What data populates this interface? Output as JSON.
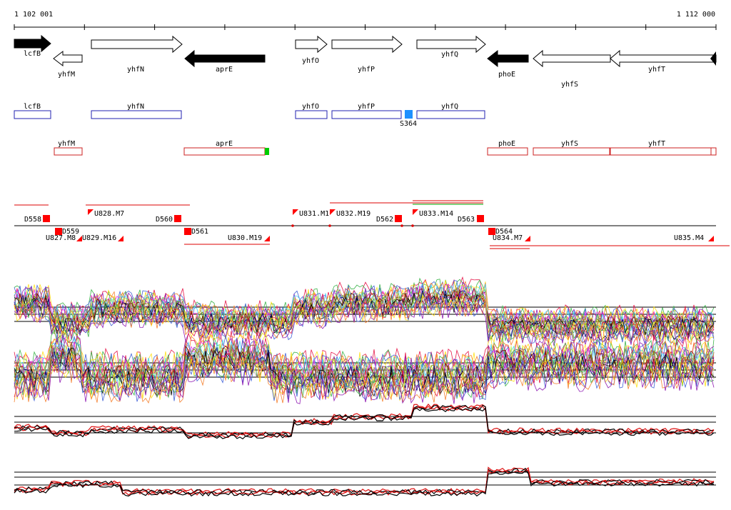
{
  "coords": {
    "start_label": "1 102 001",
    "end_label": "1 112 000"
  },
  "colors": {
    "gene_strong": "#000000",
    "gene_open": "#ffffff",
    "plus_strand_box": "#2020b0",
    "minus_strand_box": "#cc2020",
    "segment_marker": "#ff0000",
    "green_flag": "#00cc00",
    "blue_flag": "#1e90ff",
    "track_black": "#000000",
    "track_red": "#dd1111"
  },
  "genes_track": [
    {
      "name": "lcfB",
      "direction": "right",
      "style": "filled"
    },
    {
      "name": "yhfM",
      "direction": "left",
      "style": "open"
    },
    {
      "name": "yhfN",
      "direction": "right",
      "style": "open"
    },
    {
      "name": "aprE",
      "direction": "left",
      "style": "filled"
    },
    {
      "name": "yhfO",
      "direction": "right",
      "style": "open"
    },
    {
      "name": "yhfP",
      "direction": "right",
      "style": "open"
    },
    {
      "name": "yhfQ",
      "direction": "right",
      "style": "open"
    },
    {
      "name": "phoE",
      "direction": "left",
      "style": "filled"
    },
    {
      "name": "yhfS",
      "direction": "left",
      "style": "open"
    },
    {
      "name": "yhfT",
      "direction": "left",
      "style": "open"
    }
  ],
  "plus_boxes": [
    {
      "name": "lcfB"
    },
    {
      "name": "yhfN"
    },
    {
      "name": "yhfO"
    },
    {
      "name": "yhfP"
    },
    {
      "name": "yhfQ"
    }
  ],
  "feature_markers": [
    {
      "name": "S364",
      "color": "blue"
    }
  ],
  "minus_boxes": [
    {
      "name": "yhfM"
    },
    {
      "name": "aprE",
      "flag": "green"
    },
    {
      "name": "phoE"
    },
    {
      "name": "yhfS"
    },
    {
      "name": "yhfT"
    }
  ],
  "segments_upper": [
    "D558",
    "U828.M7",
    "D560",
    "U831.M1",
    "U832.M19",
    "D562",
    "U833.M14",
    "D563"
  ],
  "segments_lower": [
    "U827.M8",
    "D559",
    "U829.M16",
    "D561",
    "U830.M19",
    "D564",
    "U834.M7",
    "U835.M4"
  ],
  "expression_panels": [
    {
      "name": "expression-panel-plus"
    },
    {
      "name": "expression-panel-minus"
    },
    {
      "name": "expression-panel-plus-summary"
    },
    {
      "name": "expression-panel-minus-summary"
    }
  ]
}
